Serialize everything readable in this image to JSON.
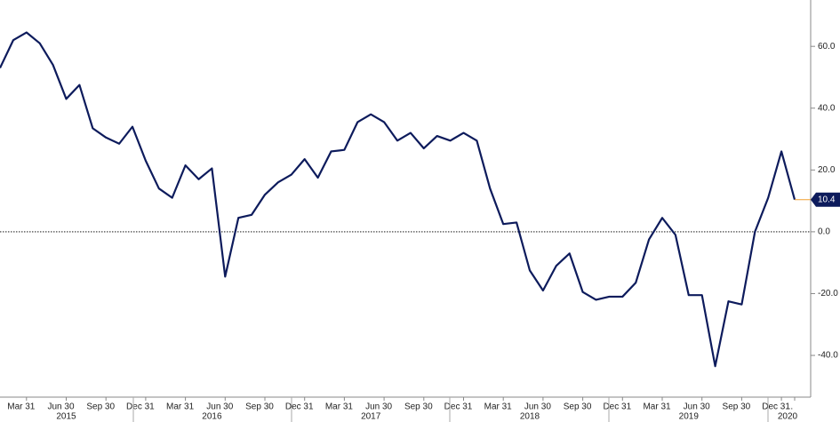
{
  "chart_data": {
    "type": "line",
    "categories": [
      null,
      null,
      "Mar 31",
      null,
      null,
      "Jun 30",
      null,
      null,
      "Sep 30",
      null,
      null,
      "Dec 31",
      null,
      null,
      "Mar 31",
      null,
      null,
      "Jun 30",
      null,
      null,
      "Sep 30",
      null,
      null,
      "Dec 31",
      null,
      null,
      "Mar 31",
      null,
      null,
      "Jun 30",
      null,
      null,
      "Sep 30",
      null,
      null,
      "Dec 31",
      null,
      null,
      "Mar 31",
      null,
      null,
      "Jun 30",
      null,
      null,
      "Sep 30",
      null,
      null,
      "Dec 31",
      null,
      null,
      "Mar 31",
      null,
      null,
      "Jun 30",
      null,
      null,
      "Sep 30",
      null,
      null,
      "Dec 31",
      "..."
    ],
    "year_labels": [
      null,
      null,
      null,
      null,
      null,
      "2015",
      null,
      null,
      null,
      null,
      null,
      null,
      null,
      null,
      null,
      null,
      "2016",
      null,
      null,
      null,
      null,
      null,
      null,
      null,
      null,
      null,
      null,
      null,
      "2017",
      null,
      null,
      null,
      null,
      null,
      null,
      null,
      null,
      null,
      null,
      null,
      "2018",
      null,
      null,
      null,
      null,
      null,
      null,
      null,
      null,
      null,
      null,
      null,
      "2019",
      null,
      null,
      null,
      null,
      null,
      null,
      null,
      "2020"
    ],
    "series": [
      {
        "color": "#0d1b5c",
        "values": [
          53,
          62,
          64.5,
          61,
          54,
          43,
          47.5,
          33.5,
          30.5,
          28.5,
          34,
          23,
          14,
          11,
          21.5,
          17,
          20.5,
          -14.5,
          4.5,
          5.5,
          12,
          16,
          18.5,
          23.5,
          17.5,
          26,
          26.5,
          35.5,
          38,
          35.5,
          29.5,
          32,
          27,
          31,
          29.5,
          32,
          29.5,
          14,
          2.5,
          3,
          -12.5,
          -19,
          -11,
          -7,
          -19.5,
          -22,
          -21,
          -21,
          -16.5,
          -2.5,
          4.5,
          -1,
          -20.5,
          -20.5,
          -43.5,
          -22.5,
          -23.5,
          0,
          11,
          26,
          10.4
        ],
        "value_labels": [
          null,
          null,
          null,
          null,
          null,
          null,
          null,
          null,
          null,
          null,
          null,
          null,
          null,
          null,
          null,
          null,
          null,
          null,
          null,
          null,
          null,
          null,
          null,
          null,
          null,
          null,
          null,
          null,
          null,
          null,
          null,
          null,
          null,
          null,
          null,
          null,
          null,
          null,
          null,
          null,
          null,
          null,
          null,
          null,
          null,
          null,
          null,
          null,
          null,
          null,
          null,
          null,
          null,
          null,
          null,
          null,
          null,
          null,
          null,
          null,
          "10.4"
        ]
      }
    ],
    "ylim": [
      -53.5,
      75
    ],
    "yticks": [
      {
        "value": -40,
        "label": "-40.0"
      },
      {
        "value": -20,
        "label": "-20.0"
      },
      {
        "value": 0,
        "label": "0.0"
      },
      {
        "value": 20,
        "label": "20.0"
      },
      {
        "value": 40,
        "label": "40.0"
      },
      {
        "value": 60,
        "label": "60.0"
      }
    ],
    "zero_line": true,
    "last_value_color": "#f0a030"
  }
}
